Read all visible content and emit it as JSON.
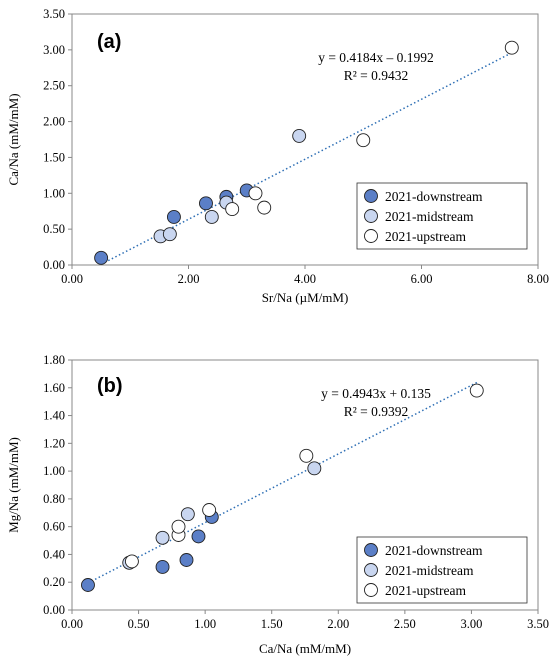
{
  "colors": {
    "downstream": "#5b7fc7",
    "midstream": "#c9d6f0",
    "upstream": "#ffffff",
    "trendline": "#2e6fb5"
  },
  "chart_data": [
    {
      "type": "scatter",
      "panel_label": "(a)",
      "xlabel": "Sr/Na (µM/mM)",
      "ylabel": "Ca/Na (mM/mM)",
      "xlim": [
        0,
        8
      ],
      "ylim": [
        0,
        3.5
      ],
      "xticks": [
        "0.00",
        "2.00",
        "4.00",
        "6.00",
        "8.00"
      ],
      "yticks": [
        "0.00",
        "0.50",
        "1.00",
        "1.50",
        "2.00",
        "2.50",
        "3.00",
        "3.50"
      ],
      "x_tick_values": [
        0,
        2,
        4,
        6,
        8
      ],
      "y_tick_values": [
        0,
        0.5,
        1,
        1.5,
        2,
        2.5,
        3,
        3.5
      ],
      "grid": false,
      "legend_position": "bottom-right",
      "equation": "y = 0.4184x – 0.1992",
      "r_squared": "R² = 0.9432",
      "trendline": {
        "slope": 0.4184,
        "intercept": -0.1992,
        "x_range": [
          0.5,
          7.55
        ]
      },
      "series": [
        {
          "name": "2021-downstream",
          "color_key": "downstream",
          "x": [
            0.5,
            1.75,
            2.3,
            2.65,
            3.0
          ],
          "y": [
            0.1,
            0.67,
            0.86,
            0.95,
            1.04
          ]
        },
        {
          "name": "2021-midstream",
          "color_key": "midstream",
          "x": [
            1.52,
            1.68,
            2.4,
            2.65,
            3.9
          ],
          "y": [
            0.4,
            0.43,
            0.67,
            0.87,
            1.8
          ]
        },
        {
          "name": "2021-upstream",
          "color_key": "upstream",
          "x": [
            2.75,
            3.15,
            3.3,
            5.0,
            7.55
          ],
          "y": [
            0.78,
            1.0,
            0.8,
            1.74,
            3.03
          ]
        }
      ]
    },
    {
      "type": "scatter",
      "panel_label": "(b)",
      "xlabel": "Ca/Na (mM/mM)",
      "ylabel": "Mg/Na (mM/mM)",
      "xlim": [
        0,
        3.5
      ],
      "ylim": [
        0,
        1.8
      ],
      "xticks": [
        "0.00",
        "0.50",
        "1.00",
        "1.50",
        "2.00",
        "2.50",
        "3.00",
        "3.50"
      ],
      "yticks": [
        "0.00",
        "0.20",
        "0.40",
        "0.60",
        "0.80",
        "1.00",
        "1.20",
        "1.40",
        "1.60",
        "1.80"
      ],
      "x_tick_values": [
        0,
        0.5,
        1,
        1.5,
        2,
        2.5,
        3,
        3.5
      ],
      "y_tick_values": [
        0,
        0.2,
        0.4,
        0.6,
        0.8,
        1.0,
        1.2,
        1.4,
        1.6,
        1.8
      ],
      "grid": false,
      "legend_position": "bottom-right",
      "equation": "y = 0.4943x + 0.135",
      "r_squared": "R² = 0.9392",
      "trendline": {
        "slope": 0.4943,
        "intercept": 0.135,
        "x_range": [
          0.12,
          3.05
        ]
      },
      "series": [
        {
          "name": "2021-downstream",
          "color_key": "downstream",
          "x": [
            0.12,
            0.68,
            0.86,
            0.95,
            1.05
          ],
          "y": [
            0.18,
            0.31,
            0.36,
            0.53,
            0.67
          ]
        },
        {
          "name": "2021-midstream",
          "color_key": "midstream",
          "x": [
            0.43,
            0.68,
            0.87,
            1.82
          ],
          "y": [
            0.34,
            0.52,
            0.69,
            1.02
          ]
        },
        {
          "name": "2021-upstream",
          "color_key": "upstream",
          "x": [
            0.45,
            0.8,
            0.8,
            1.03,
            1.76,
            3.04
          ],
          "y": [
            0.35,
            0.54,
            0.6,
            0.72,
            1.11,
            1.58
          ]
        }
      ]
    }
  ]
}
